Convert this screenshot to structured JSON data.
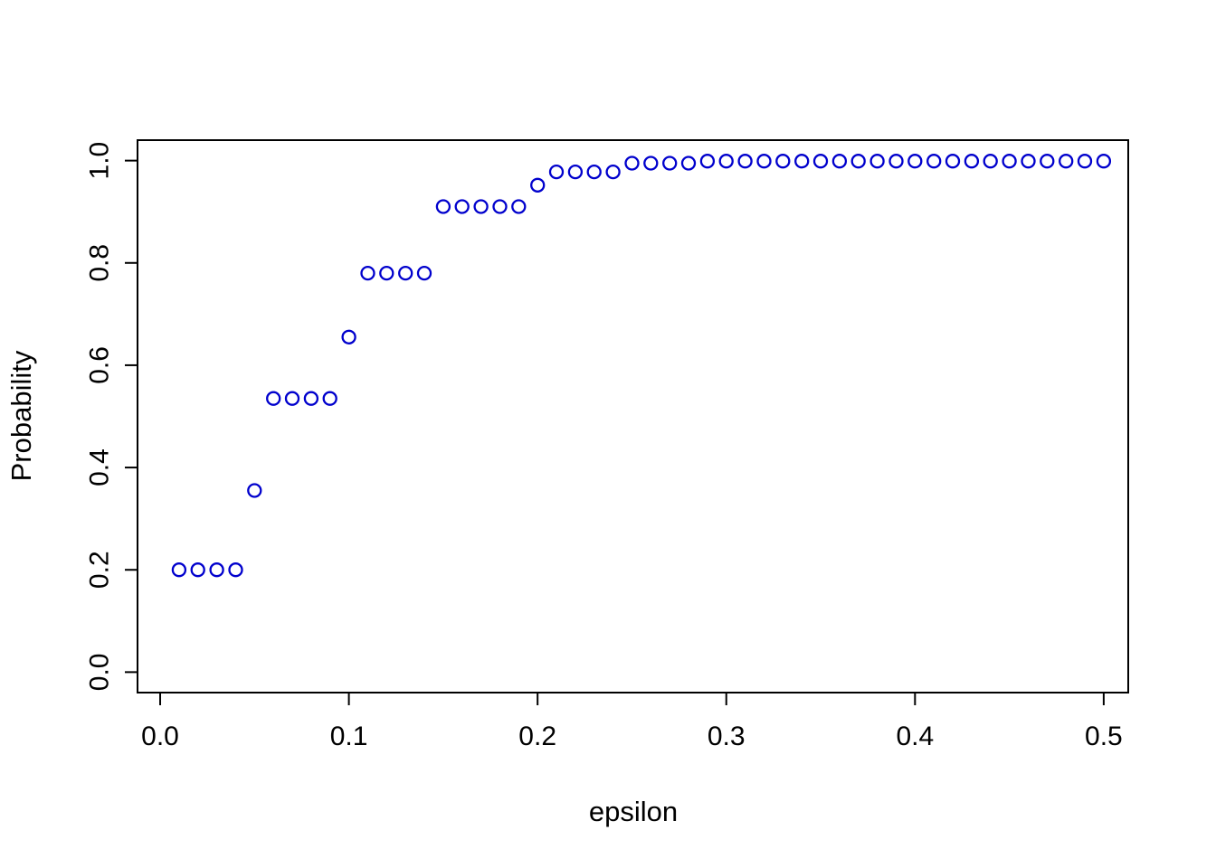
{
  "figure": {
    "background": "#ffffff"
  },
  "chart_data": {
    "type": "scatter",
    "title": "",
    "xlabel": "epsilon",
    "ylabel": "Probability",
    "marker": "open-circle",
    "marker_color": "#0000cd",
    "grid": false,
    "legend": "none",
    "xlim": [
      -0.012,
      0.513
    ],
    "ylim": [
      -0.04,
      1.04
    ],
    "x_ticks": [
      0.0,
      0.1,
      0.2,
      0.3,
      0.4,
      0.5
    ],
    "x_tick_labels": [
      "0.0",
      "0.1",
      "0.2",
      "0.3",
      "0.4",
      "0.5"
    ],
    "y_ticks": [
      0.0,
      0.2,
      0.4,
      0.6,
      0.8,
      1.0
    ],
    "y_tick_labels": [
      "0.0",
      "0.2",
      "0.4",
      "0.6",
      "0.8",
      "1.0"
    ],
    "x": [
      0.01,
      0.02,
      0.03,
      0.04,
      0.05,
      0.06,
      0.07,
      0.08,
      0.09,
      0.1,
      0.11,
      0.12,
      0.13,
      0.14,
      0.15,
      0.16,
      0.17,
      0.18,
      0.19,
      0.2,
      0.21,
      0.22,
      0.23,
      0.24,
      0.25,
      0.26,
      0.27,
      0.28,
      0.29,
      0.3,
      0.31,
      0.32,
      0.33,
      0.34,
      0.35,
      0.36,
      0.37,
      0.38,
      0.39,
      0.4,
      0.41,
      0.42,
      0.43,
      0.44,
      0.45,
      0.46,
      0.47,
      0.48,
      0.49,
      0.5
    ],
    "y": [
      0.2,
      0.2,
      0.2,
      0.2,
      0.355,
      0.535,
      0.535,
      0.535,
      0.535,
      0.655,
      0.78,
      0.78,
      0.78,
      0.78,
      0.91,
      0.91,
      0.91,
      0.91,
      0.91,
      0.952,
      0.978,
      0.978,
      0.978,
      0.978,
      0.995,
      0.995,
      0.995,
      0.995,
      0.999,
      0.999,
      0.999,
      0.999,
      0.999,
      0.999,
      0.999,
      0.999,
      0.999,
      0.999,
      0.999,
      0.999,
      0.999,
      0.999,
      0.999,
      0.999,
      0.999,
      0.999,
      0.999,
      0.999,
      0.999,
      0.999
    ]
  }
}
